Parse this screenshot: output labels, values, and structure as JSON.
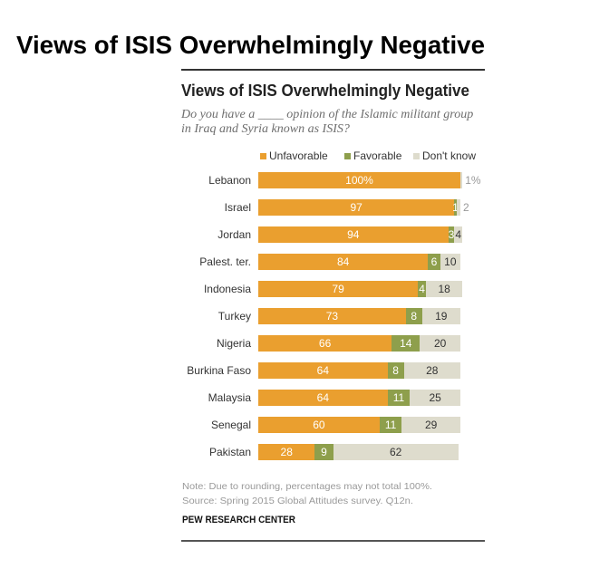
{
  "header": {
    "title": "Views of ISIS Overwhelmingly Negative"
  },
  "chart_data": {
    "type": "bar",
    "orientation": "horizontal",
    "stacked": true,
    "title": "Views of ISIS Overwhelmingly Negative",
    "subtitle_lines": [
      "Do you have a ____ opinion of the Islamic militant group",
      "in Iraq and Syria known as ISIS?"
    ],
    "xlabel": "",
    "ylabel": "",
    "xlim": [
      0,
      100
    ],
    "unit": "%",
    "grid": false,
    "legend": "top",
    "categories": [
      "Lebanon",
      "Israel",
      "Jordan",
      "Palest. ter.",
      "Indonesia",
      "Turkey",
      "Nigeria",
      "Burkina Faso",
      "Malaysia",
      "Senegal",
      "Pakistan"
    ],
    "series": [
      {
        "name": "Unfavorable",
        "color": "#EA9F2F",
        "label_color": "#ffffff",
        "values": [
          100,
          97,
          94,
          84,
          79,
          73,
          66,
          64,
          64,
          60,
          28
        ],
        "labels": [
          "100%",
          "97",
          "94",
          "84",
          "79",
          "73",
          "66",
          "64",
          "64",
          "60",
          "28"
        ]
      },
      {
        "name": "Favorable",
        "color": "#8E9F4C",
        "label_color": "#ffffff",
        "values": [
          0,
          1,
          3,
          6,
          4,
          8,
          14,
          8,
          11,
          11,
          9
        ],
        "labels": [
          "",
          "1",
          "3",
          "6",
          "4",
          "8",
          "14",
          "8",
          "11",
          "11",
          "9"
        ]
      },
      {
        "name": "Don't know",
        "color": "#DEDCCD",
        "label_color": "#333333",
        "outside_label_color": "#999999",
        "values": [
          1,
          2,
          4,
          10,
          18,
          19,
          20,
          28,
          25,
          29,
          62
        ],
        "labels": [
          "1%",
          "2",
          "4",
          "10",
          "18",
          "19",
          "20",
          "28",
          "25",
          "29",
          "62"
        ],
        "labels_outside": [
          true,
          true,
          false,
          false,
          false,
          false,
          false,
          false,
          false,
          false,
          false
        ]
      }
    ],
    "note": "Note: Due to rounding, percentages may not total 100%.",
    "source": "Source: Spring 2015 Global Attitudes survey. Q12n.",
    "credit": "PEW RESEARCH CENTER"
  }
}
